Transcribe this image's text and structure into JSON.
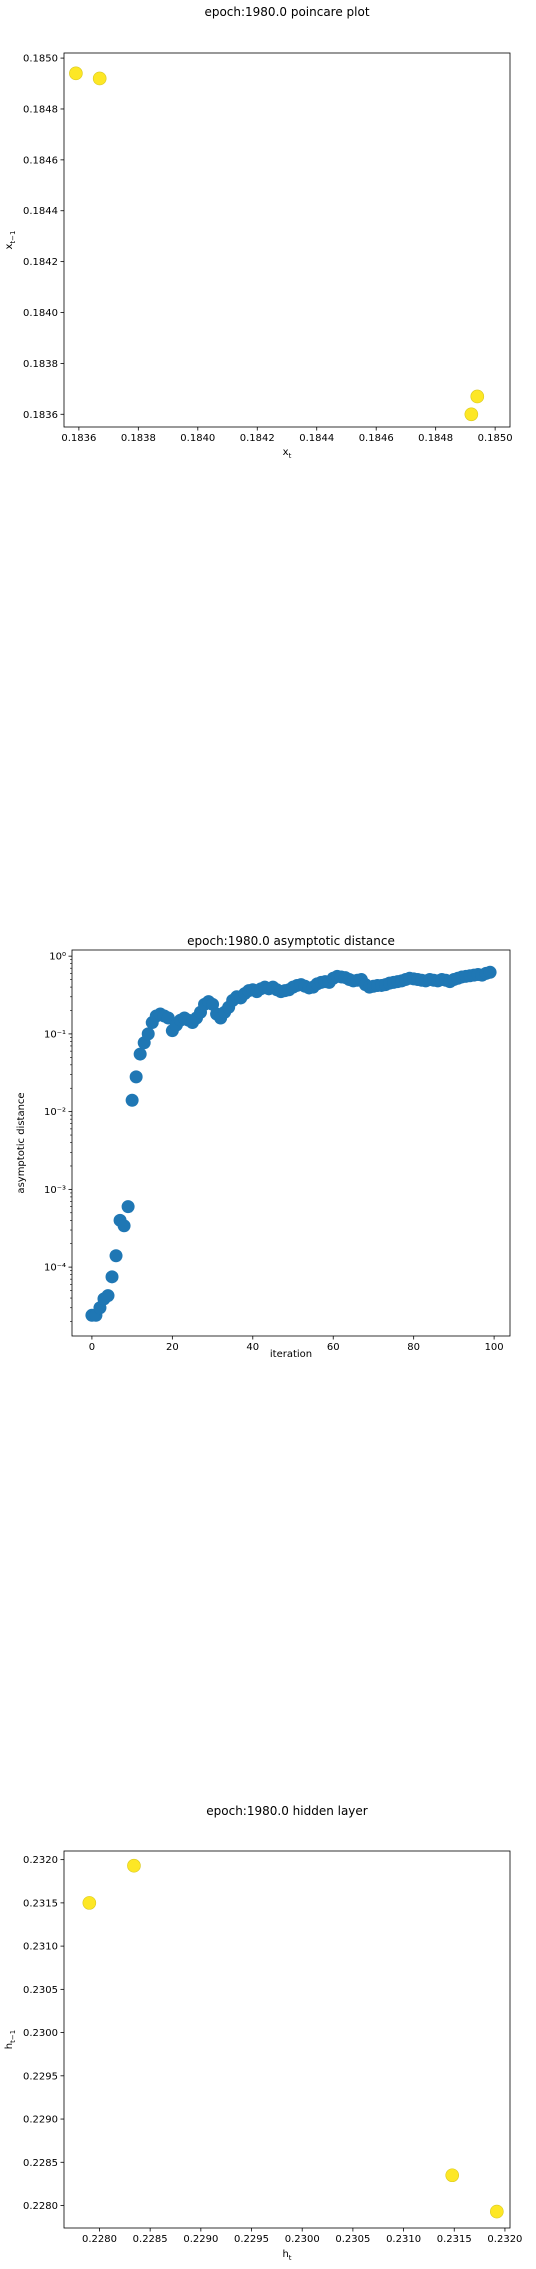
{
  "chart_data": [
    {
      "type": "scatter",
      "title": "epoch:1980.0 poincare plot",
      "xlabel": "x_t",
      "ylabel": "x_{t-1}",
      "xlim": [
        0.18355,
        0.18505
      ],
      "ylim": [
        0.18355,
        0.18502
      ],
      "xticks": [
        "0.1836",
        "0.1838",
        "0.1840",
        "0.1842",
        "0.1844",
        "0.1846",
        "0.1848",
        "0.1850"
      ],
      "xtick_values": [
        0.1836,
        0.1838,
        0.184,
        0.1842,
        0.1844,
        0.1846,
        0.1848,
        0.185
      ],
      "yticks": [
        "0.1836",
        "0.1838",
        "0.1840",
        "0.1842",
        "0.1844",
        "0.1846",
        "0.1848",
        "0.1850"
      ],
      "ytick_values": [
        0.1836,
        0.1838,
        0.184,
        0.1842,
        0.1844,
        0.1846,
        0.1848,
        0.185
      ],
      "color": "#fde725",
      "x": [
        0.18359,
        0.18367,
        0.18492,
        0.18494
      ],
      "y": [
        0.18494,
        0.18492,
        0.1836,
        0.18367
      ]
    },
    {
      "type": "scatter",
      "title": "epoch:1980.0 asymptotic distance",
      "xlabel": "iteration",
      "ylabel": "asymptotic distance",
      "yscale": "log",
      "xlim": [
        -4.95,
        103.95
      ],
      "ylim": [
        1.3e-05,
        1.2
      ],
      "xticks": [
        "0",
        "20",
        "40",
        "60",
        "80",
        "100"
      ],
      "xtick_values": [
        0,
        20,
        40,
        60,
        80,
        100
      ],
      "yticks": [
        "10⁻⁴",
        "10⁻³",
        "10⁻²",
        "10⁻¹",
        "10⁰"
      ],
      "ytick_values": [
        0.0001,
        0.001,
        0.01,
        0.1,
        1
      ],
      "color": "#1f77b4",
      "x": [
        0,
        1,
        2,
        3,
        4,
        5,
        6,
        7,
        8,
        9,
        10,
        11,
        12,
        13,
        14,
        15,
        16,
        17,
        18,
        19,
        20,
        21,
        22,
        23,
        24,
        25,
        26,
        27,
        28,
        29,
        30,
        31,
        32,
        33,
        34,
        35,
        36,
        37,
        38,
        39,
        40,
        41,
        42,
        43,
        44,
        45,
        46,
        47,
        48,
        49,
        50,
        51,
        52,
        53,
        54,
        55,
        56,
        57,
        58,
        59,
        60,
        61,
        62,
        63,
        64,
        65,
        66,
        67,
        68,
        69,
        70,
        71,
        72,
        73,
        74,
        75,
        76,
        77,
        78,
        79,
        80,
        81,
        82,
        83,
        84,
        85,
        86,
        87,
        88,
        89,
        90,
        91,
        92,
        93,
        94,
        95,
        96,
        97,
        98,
        99
      ],
      "values": [
        2.4e-05,
        2.4e-05,
        3e-05,
        3.9e-05,
        4.3e-05,
        7.5e-05,
        0.00014,
        0.0004,
        0.00034,
        0.0006,
        0.014,
        0.028,
        0.055,
        0.077,
        0.1,
        0.14,
        0.17,
        0.18,
        0.17,
        0.16,
        0.11,
        0.13,
        0.15,
        0.16,
        0.15,
        0.14,
        0.16,
        0.19,
        0.24,
        0.26,
        0.24,
        0.18,
        0.16,
        0.19,
        0.22,
        0.27,
        0.3,
        0.29,
        0.33,
        0.36,
        0.37,
        0.35,
        0.38,
        0.4,
        0.38,
        0.4,
        0.37,
        0.35,
        0.36,
        0.37,
        0.4,
        0.42,
        0.43,
        0.41,
        0.39,
        0.4,
        0.44,
        0.46,
        0.47,
        0.46,
        0.52,
        0.55,
        0.54,
        0.53,
        0.5,
        0.48,
        0.49,
        0.5,
        0.43,
        0.4,
        0.41,
        0.42,
        0.42,
        0.43,
        0.45,
        0.46,
        0.47,
        0.48,
        0.5,
        0.52,
        0.51,
        0.5,
        0.49,
        0.48,
        0.5,
        0.49,
        0.48,
        0.5,
        0.49,
        0.47,
        0.5,
        0.52,
        0.54,
        0.55,
        0.56,
        0.57,
        0.58,
        0.57,
        0.6,
        0.62
      ]
    },
    {
      "type": "scatter",
      "title": "epoch:1980.0 hidden layer",
      "xlabel": "h_t",
      "ylabel": "h_{t-1}",
      "xlim": [
        0.22765,
        0.23205
      ],
      "ylim": [
        0.22774,
        0.2321
      ],
      "xticks": [
        "0.2280",
        "0.2285",
        "0.2290",
        "0.2295",
        "0.2300",
        "0.2305",
        "0.2310",
        "0.2315",
        "0.2320"
      ],
      "xtick_values": [
        0.228,
        0.2285,
        0.229,
        0.2295,
        0.23,
        0.2305,
        0.231,
        0.2315,
        0.232
      ],
      "yticks": [
        "0.2280",
        "0.2285",
        "0.2290",
        "0.2295",
        "0.2300",
        "0.2305",
        "0.2310",
        "0.2315",
        "0.2320"
      ],
      "ytick_values": [
        0.228,
        0.2285,
        0.229,
        0.2295,
        0.23,
        0.2305,
        0.231,
        0.2315,
        0.232
      ],
      "color": "#fde725",
      "x": [
        0.2279,
        0.22834,
        0.23148,
        0.23192
      ],
      "y": [
        0.2315,
        0.23193,
        0.22835,
        0.22793
      ]
    }
  ]
}
